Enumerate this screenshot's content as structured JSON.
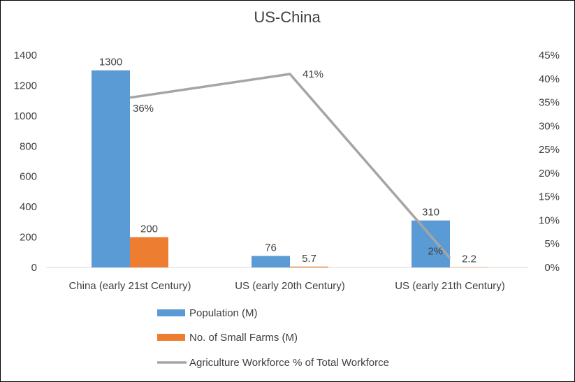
{
  "chart_data": {
    "type": "bar",
    "title": "US-China",
    "categories": [
      "China (early 21st Century)",
      "US (early 20th Century)",
      "US (early 21th Century)"
    ],
    "series": [
      {
        "name": "Population (M)",
        "type": "bar",
        "axis": "left",
        "color": "#5B9BD5",
        "values": [
          1300,
          76,
          310
        ],
        "labels": [
          "1300",
          "76",
          "310"
        ]
      },
      {
        "name": "No. of Small Farms (M)",
        "type": "bar",
        "axis": "left",
        "color": "#ED7D31",
        "values": [
          200,
          5.7,
          2.2
        ],
        "labels": [
          "200",
          "5.7",
          "2.2"
        ]
      },
      {
        "name": "Agriculture Workforce % of Total Workforce",
        "type": "line",
        "axis": "right",
        "color": "#A5A5A5",
        "values": [
          36,
          41,
          2
        ],
        "labels": [
          "36%",
          "41%",
          "2%"
        ]
      }
    ],
    "y_left": {
      "min": 0,
      "max": 1400,
      "ticks": [
        "0",
        "200",
        "400",
        "600",
        "800",
        "1000",
        "1200",
        "1400"
      ]
    },
    "y_right": {
      "min": 0,
      "max": 45,
      "ticks": [
        "0%",
        "5%",
        "10%",
        "15%",
        "20%",
        "25%",
        "30%",
        "35%",
        "40%",
        "45%"
      ]
    },
    "grid": false,
    "legend_position": "bottom"
  }
}
